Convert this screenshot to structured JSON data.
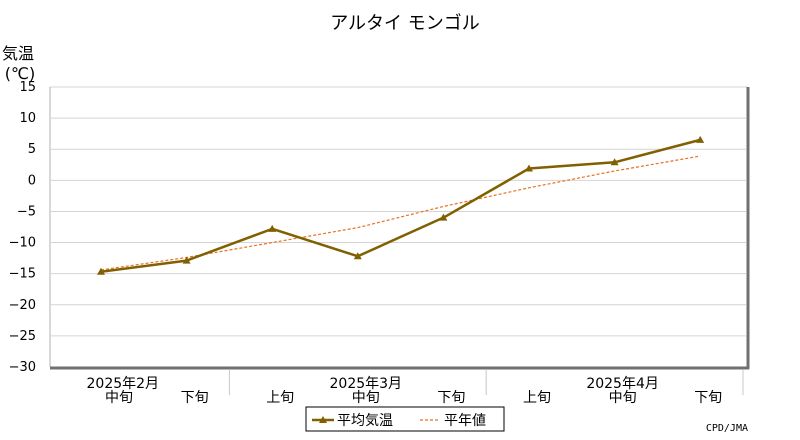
{
  "chart_data": {
    "type": "line",
    "title": "アルタイ モンゴル",
    "ylabel_line1": "気温",
    "ylabel_line2": "(℃)",
    "ylim": [
      -30,
      15
    ],
    "yticks": [
      15,
      10,
      5,
      0,
      -5,
      -10,
      -15,
      -20,
      -25,
      -30
    ],
    "ytick_labels": [
      "15",
      "10",
      "5",
      "0",
      "−5",
      "−10",
      "−15",
      "−20",
      "−25",
      "−30"
    ],
    "categories": [
      "中旬",
      "下旬",
      "上旬",
      "中旬",
      "下旬",
      "上旬",
      "中旬",
      "下旬"
    ],
    "month_labels": [
      {
        "label": "2025年2月",
        "index": 0.5
      },
      {
        "label": "2025年3月",
        "index": 3
      },
      {
        "label": "2025年4月",
        "index": 6
      }
    ],
    "month_dividers": [
      1.5,
      4.5,
      7.5
    ],
    "grid": true,
    "legend_position": "bottom-center",
    "series": [
      {
        "name": "平均気温",
        "color": "#806000",
        "style": "solid",
        "marker": "triangle",
        "values": [
          -14.7,
          -12.9,
          -7.8,
          -12.2,
          -6.0,
          1.9,
          2.9,
          6.5
        ]
      },
      {
        "name": "平年値",
        "color": "#e87020",
        "style": "dashed",
        "values": [
          -14.4,
          -12.4,
          -10.0,
          -7.6,
          -4.2,
          -1.2,
          1.5,
          3.9
        ]
      }
    ],
    "credit": "CPD/JMA"
  }
}
